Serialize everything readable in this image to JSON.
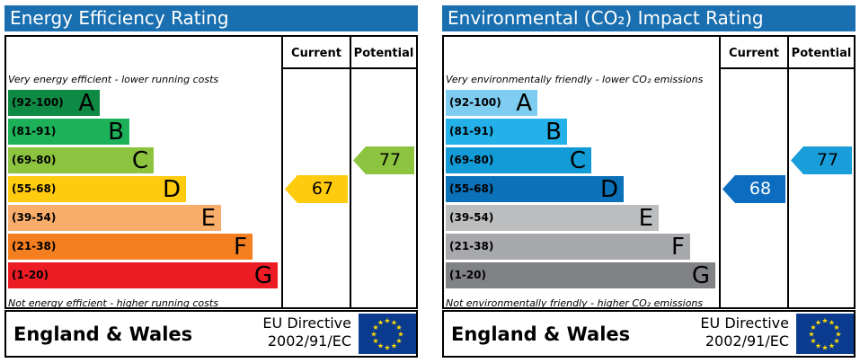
{
  "chart_data": [
    {
      "type": "bar",
      "title": "Energy Efficiency Rating",
      "column_headers": [
        "Current",
        "Potential"
      ],
      "top_note": "Very energy efficient - lower running costs",
      "bottom_note": "Not energy efficient - higher running costs",
      "bands": [
        {
          "range": "(92-100)",
          "letter": "A",
          "color": "#0e8a44"
        },
        {
          "range": "(81-91)",
          "letter": "B",
          "color": "#1db15a"
        },
        {
          "range": "(69-80)",
          "letter": "C",
          "color": "#8cc43f"
        },
        {
          "range": "(55-68)",
          "letter": "D",
          "color": "#fecb0e"
        },
        {
          "range": "(39-54)",
          "letter": "E",
          "color": "#f8ad6b"
        },
        {
          "range": "(21-38)",
          "letter": "F",
          "color": "#f37f21"
        },
        {
          "range": "(1-20)",
          "letter": "G",
          "color": "#ed1c24"
        }
      ],
      "current": {
        "value": "67",
        "band": "D",
        "color": "#fecb0e"
      },
      "potential": {
        "value": "77",
        "band": "C",
        "color": "#8cc43f"
      },
      "footer": {
        "country": "England & Wales",
        "directive_line1": "EU Directive",
        "directive_line2": "2002/91/EC"
      }
    },
    {
      "type": "bar",
      "title": "Environmental (CO₂) Impact Rating",
      "column_headers": [
        "Current",
        "Potential"
      ],
      "top_note": "Very environmentally friendly - lower CO₂ emissions",
      "bottom_note": "Not environmentally friendly - higher CO₂ emissions",
      "bands": [
        {
          "range": "(92-100)",
          "letter": "A",
          "color": "#7ecdf1"
        },
        {
          "range": "(81-91)",
          "letter": "B",
          "color": "#24b0e8"
        },
        {
          "range": "(69-80)",
          "letter": "C",
          "color": "#139bd7"
        },
        {
          "range": "(55-68)",
          "letter": "D",
          "color": "#0b71b8"
        },
        {
          "range": "(39-54)",
          "letter": "E",
          "color": "#bbbdbf"
        },
        {
          "range": "(21-38)",
          "letter": "F",
          "color": "#a7a9ac"
        },
        {
          "range": "(1-20)",
          "letter": "G",
          "color": "#808285"
        }
      ],
      "current": {
        "value": "68",
        "band": "D",
        "color": "#0b6cc0"
      },
      "potential": {
        "value": "77",
        "band": "C",
        "color": "#199ed9"
      },
      "footer": {
        "country": "England & Wales",
        "directive_line1": "EU Directive",
        "directive_line2": "2002/91/EC"
      }
    }
  ]
}
